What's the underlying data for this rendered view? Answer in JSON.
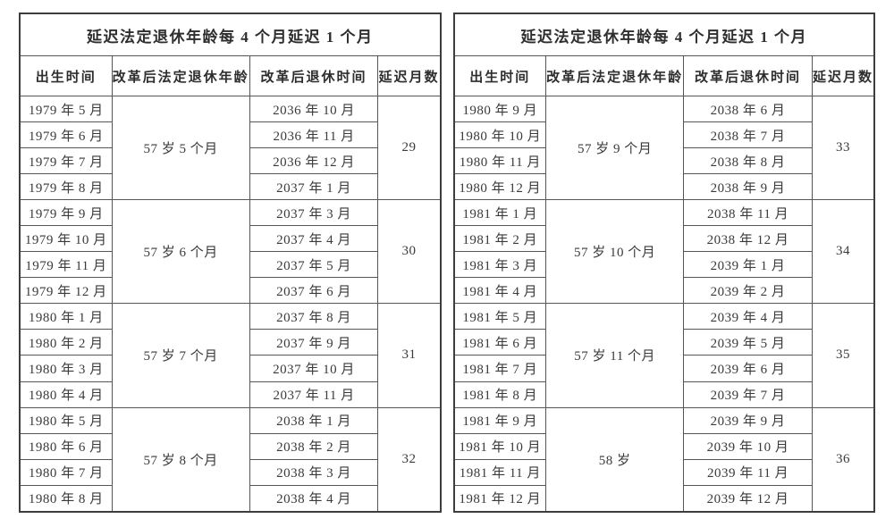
{
  "page": {
    "background": "#ffffff",
    "text_color": "#3a3a3a",
    "border_color": "#555555"
  },
  "tables": [
    {
      "title": "延迟法定退休年龄每 4 个月延迟 1 个月",
      "columns": [
        "出生时间",
        "改革后法定退休年龄",
        "改革后退休时间",
        "延迟月数"
      ],
      "groups": [
        {
          "age": "57 岁 5 个月",
          "delay": "29",
          "rows": [
            {
              "birth": "1979 年 5 月",
              "retire": "2036 年 10 月"
            },
            {
              "birth": "1979 年 6 月",
              "retire": "2036 年 11 月"
            },
            {
              "birth": "1979 年 7 月",
              "retire": "2036 年 12 月"
            },
            {
              "birth": "1979 年 8 月",
              "retire": "2037 年 1 月"
            }
          ]
        },
        {
          "age": "57 岁 6 个月",
          "delay": "30",
          "rows": [
            {
              "birth": "1979 年 9 月",
              "retire": "2037 年 3 月"
            },
            {
              "birth": "1979 年 10 月",
              "retire": "2037 年 4 月"
            },
            {
              "birth": "1979 年 11 月",
              "retire": "2037 年 5 月"
            },
            {
              "birth": "1979 年 12 月",
              "retire": "2037 年 6 月"
            }
          ]
        },
        {
          "age": "57 岁 7 个月",
          "delay": "31",
          "rows": [
            {
              "birth": "1980 年 1 月",
              "retire": "2037 年 8 月"
            },
            {
              "birth": "1980 年 2 月",
              "retire": "2037 年 9 月"
            },
            {
              "birth": "1980 年 3 月",
              "retire": "2037 年 10 月"
            },
            {
              "birth": "1980 年 4 月",
              "retire": "2037 年 11 月"
            }
          ]
        },
        {
          "age": "57 岁 8 个月",
          "delay": "32",
          "rows": [
            {
              "birth": "1980 年 5 月",
              "retire": "2038 年 1 月"
            },
            {
              "birth": "1980 年 6 月",
              "retire": "2038 年 2 月"
            },
            {
              "birth": "1980 年 7 月",
              "retire": "2038 年 3 月"
            },
            {
              "birth": "1980 年 8 月",
              "retire": "2038 年 4 月"
            }
          ]
        }
      ]
    },
    {
      "title": "延迟法定退休年龄每 4 个月延迟 1 个月",
      "columns": [
        "出生时间",
        "改革后法定退休年龄",
        "改革后退休时间",
        "延迟月数"
      ],
      "groups": [
        {
          "age": "57 岁 9 个月",
          "delay": "33",
          "rows": [
            {
              "birth": "1980 年 9 月",
              "retire": "2038 年 6 月"
            },
            {
              "birth": "1980 年 10 月",
              "retire": "2038 年 7 月"
            },
            {
              "birth": "1980 年 11 月",
              "retire": "2038 年 8 月"
            },
            {
              "birth": "1980 年 12 月",
              "retire": "2038 年 9 月"
            }
          ]
        },
        {
          "age": "57 岁 10 个月",
          "delay": "34",
          "rows": [
            {
              "birth": "1981 年 1 月",
              "retire": "2038 年 11 月"
            },
            {
              "birth": "1981 年 2 月",
              "retire": "2038 年 12 月"
            },
            {
              "birth": "1981 年 3 月",
              "retire": "2039 年 1 月"
            },
            {
              "birth": "1981 年 4 月",
              "retire": "2039 年 2 月"
            }
          ]
        },
        {
          "age": "57 岁 11 个月",
          "delay": "35",
          "rows": [
            {
              "birth": "1981 年 5 月",
              "retire": "2039 年 4 月"
            },
            {
              "birth": "1981 年 6 月",
              "retire": "2039 年 5 月"
            },
            {
              "birth": "1981 年 7 月",
              "retire": "2039 年 6 月"
            },
            {
              "birth": "1981 年 8 月",
              "retire": "2039 年 7 月"
            }
          ]
        },
        {
          "age": "58 岁",
          "delay": "36",
          "rows": [
            {
              "birth": "1981 年 9 月",
              "retire": "2039 年 9 月"
            },
            {
              "birth": "1981 年 10 月",
              "retire": "2039 年 10 月"
            },
            {
              "birth": "1981 年 11 月",
              "retire": "2039 年 11 月"
            },
            {
              "birth": "1981 年 12 月",
              "retire": "2039 年 12 月"
            }
          ]
        }
      ]
    }
  ]
}
